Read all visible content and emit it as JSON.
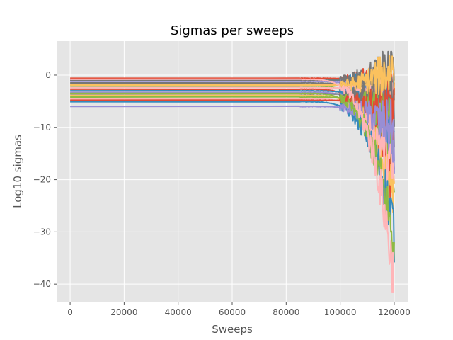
{
  "chart_data": {
    "type": "line",
    "title": "Sigmas per sweeps",
    "xlabel": "Sweeps",
    "ylabel": "Log10 sigmas",
    "xlim": [
      -5000,
      125000
    ],
    "ylim": [
      -43.5,
      6.5
    ],
    "xticks": [
      0,
      20000,
      40000,
      60000,
      80000,
      100000,
      120000
    ],
    "xtick_labels": [
      "0",
      "20000",
      "40000",
      "60000",
      "80000",
      "100000",
      "120000"
    ],
    "yticks": [
      0,
      -10,
      -20,
      -30,
      -40
    ],
    "ytick_labels": [
      "0",
      "−10",
      "−20",
      "−30",
      "−40"
    ],
    "grid": true,
    "legend": "none",
    "background": "#e5e5e5",
    "colors": [
      "#E24A33",
      "#348ABD",
      "#988ED5",
      "#777777",
      "#FBC15E",
      "#8EBA42",
      "#FFB5B8"
    ],
    "series": [
      {
        "baseline": -0.6,
        "end": -2.0
      },
      {
        "baseline": -0.9,
        "end": -4.0
      },
      {
        "baseline": -1.2,
        "end": -8.0
      },
      {
        "baseline": -1.5,
        "end": -12.0
      },
      {
        "baseline": -1.8,
        "end": -3.0
      },
      {
        "baseline": -2.1,
        "end": -18.0
      },
      {
        "baseline": -2.4,
        "end": -6.0
      },
      {
        "baseline": -2.7,
        "end": -22.0
      },
      {
        "baseline": -3.0,
        "end": -10.0
      },
      {
        "baseline": -3.3,
        "end": -15.0
      },
      {
        "baseline": -3.6,
        "end": -5.0
      },
      {
        "baseline": -3.9,
        "end": -25.0
      },
      {
        "baseline": -4.2,
        "end": -9.0
      },
      {
        "baseline": -4.5,
        "end": -20.0
      },
      {
        "baseline": -4.8,
        "end": -7.0
      },
      {
        "baseline": -5.1,
        "end": -30.0
      },
      {
        "baseline": -6.0,
        "end": -11.0
      },
      {
        "baseline": -1.0,
        "end": 2.0
      },
      {
        "baseline": -2.0,
        "end": 1.5
      },
      {
        "baseline": -3.5,
        "end": -33.0
      },
      {
        "baseline": -0.8,
        "end": -40.0
      }
    ],
    "x_end": 120000
  }
}
